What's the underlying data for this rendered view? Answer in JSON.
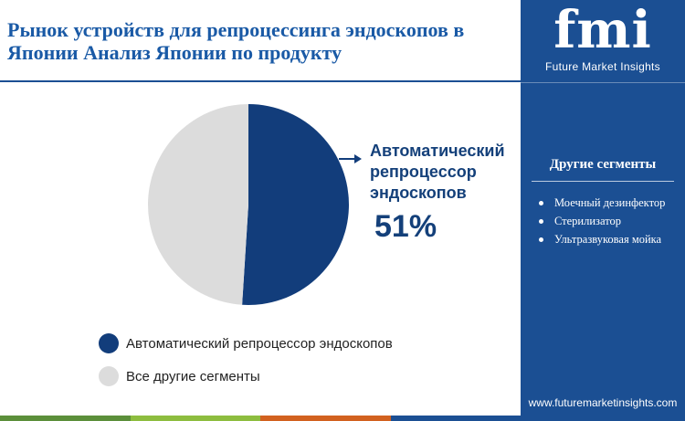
{
  "page": {
    "title_lines": [
      "Рынок устройств для репроцессинга эндоскопов в",
      "Японии Анализ Японии по продукту"
    ]
  },
  "chart_data": {
    "type": "pie",
    "title": "Рынок устройств для репроцессинга эндоскопов в Японии Анализ Японии по продукту",
    "slices": [
      {
        "label": "Автоматический репроцессор эндоскопов",
        "value": 51,
        "color": "#123d7b"
      },
      {
        "label": "Все другие сегменты",
        "value": 49,
        "color": "#dcdcdc"
      }
    ],
    "highlight": {
      "label_lines": [
        "Автоматический",
        "репроцессор",
        "эндоскопов"
      ],
      "value_text": "51%"
    },
    "legend": {
      "position": "bottom-left",
      "items": [
        {
          "label": "Автоматический репроцессор эндоскопов",
          "color": "#123d7b"
        },
        {
          "label": "Все другие сегменты",
          "color": "#dcdcdc"
        }
      ]
    }
  },
  "sidebar": {
    "logo_letters": "fmi",
    "logo_name": "Future Market Insights",
    "other_segments_title": "Другие сегменты",
    "other_segments": [
      "Моечный дезинфектор",
      "Стерилизатор",
      "Ультразвуковая мойка"
    ],
    "website": "www.futuremarketinsights.com"
  },
  "colors": {
    "accent": "#1b4f93",
    "title_text": "#1a5aa6",
    "bottom_bar": [
      "#5b8f3a",
      "#8dbd3f",
      "#d2611f",
      "#1b4f93"
    ]
  }
}
